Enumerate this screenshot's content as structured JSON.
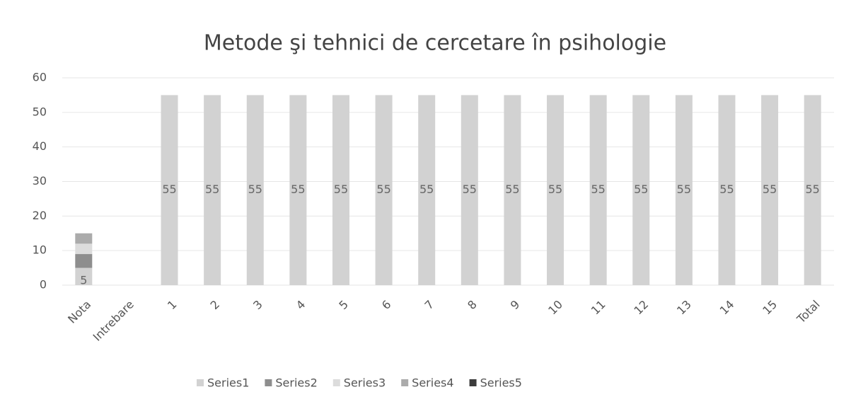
{
  "chart_data": {
    "type": "stacked_bar",
    "title": "Metode şi tehnici de cercetare în psihologie",
    "categories": [
      "Nota",
      "Intrebare",
      "1",
      "2",
      "3",
      "4",
      "5",
      "6",
      "7",
      "8",
      "9",
      "10",
      "11",
      "12",
      "13",
      "14",
      "15",
      "Total"
    ],
    "series": [
      {
        "name": "Series1",
        "color": "#d2d2d2",
        "data_labels": true,
        "values": [
          5,
          null,
          55,
          55,
          55,
          55,
          55,
          55,
          55,
          55,
          55,
          55,
          55,
          55,
          55,
          55,
          55,
          55
        ]
      },
      {
        "name": "Series2",
        "color": "#8e8e8e",
        "values": [
          4,
          null,
          null,
          null,
          null,
          null,
          null,
          null,
          null,
          null,
          null,
          null,
          null,
          null,
          null,
          null,
          null,
          null
        ]
      },
      {
        "name": "Series3",
        "color": "#dcdcdc",
        "values": [
          3,
          null,
          null,
          null,
          null,
          null,
          null,
          null,
          null,
          null,
          null,
          null,
          null,
          null,
          null,
          null,
          null,
          null
        ]
      },
      {
        "name": "Series4",
        "color": "#ababab",
        "values": [
          3,
          null,
          null,
          null,
          null,
          null,
          null,
          null,
          null,
          null,
          null,
          null,
          null,
          null,
          null,
          null,
          null,
          null
        ]
      },
      {
        "name": "Series5",
        "color": "#3c3c3c",
        "values": [
          null,
          null,
          null,
          null,
          null,
          null,
          null,
          null,
          null,
          null,
          null,
          null,
          null,
          null,
          null,
          null,
          null,
          null
        ]
      }
    ],
    "ylim": [
      0,
      60
    ],
    "yticks": [
      0,
      10,
      20,
      30,
      40,
      50,
      60
    ],
    "grid": true,
    "legend": "bottom"
  }
}
